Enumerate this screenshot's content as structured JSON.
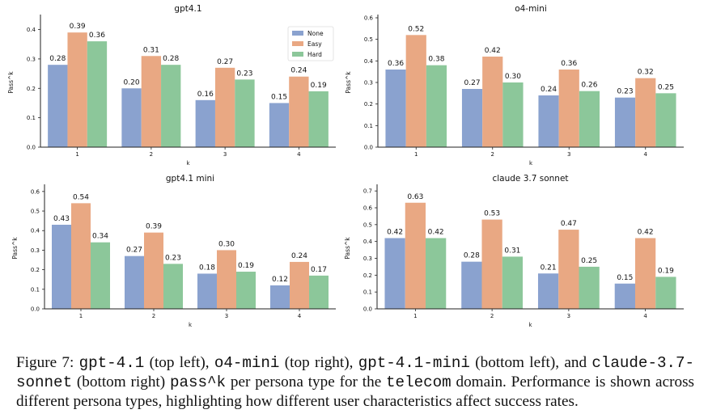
{
  "chart_data": [
    {
      "type": "bar",
      "title": "gpt4.1",
      "xlabel": "k",
      "ylabel": "Pass^k",
      "categories": [
        "1",
        "2",
        "3",
        "4"
      ],
      "ylim": [
        0,
        0.44
      ],
      "yticks": [
        "0.0",
        "0.1",
        "0.2",
        "0.3",
        "0.4"
      ],
      "series": [
        {
          "name": "None",
          "values": [
            0.28,
            0.2,
            0.16,
            0.15
          ],
          "labels": [
            "0.28",
            "0.20",
            "0.16",
            "0.15"
          ]
        },
        {
          "name": "Easy",
          "values": [
            0.39,
            0.31,
            0.27,
            0.24
          ],
          "labels": [
            "0.39",
            "0.31",
            "0.27",
            "0.24"
          ]
        },
        {
          "name": "Hard",
          "values": [
            0.36,
            0.28,
            0.23,
            0.19
          ],
          "labels": [
            "0.36",
            "0.28",
            "0.23",
            "0.19"
          ]
        }
      ],
      "legend": "top-right"
    },
    {
      "type": "bar",
      "title": "o4-mini",
      "xlabel": "k",
      "ylabel": "Pass^k",
      "categories": [
        "1",
        "2",
        "3",
        "4"
      ],
      "ylim": [
        0,
        0.6
      ],
      "yticks": [
        "0.0",
        "0.1",
        "0.2",
        "0.3",
        "0.4",
        "0.5",
        "0.6"
      ],
      "series": [
        {
          "name": "None",
          "values": [
            0.36,
            0.27,
            0.24,
            0.23
          ],
          "labels": [
            "0.36",
            "0.27",
            "0.24",
            "0.23"
          ]
        },
        {
          "name": "Easy",
          "values": [
            0.52,
            0.42,
            0.36,
            0.32
          ],
          "labels": [
            "0.52",
            "0.42",
            "0.36",
            "0.32"
          ]
        },
        {
          "name": "Hard",
          "values": [
            0.38,
            0.3,
            0.26,
            0.25
          ],
          "labels": [
            "0.38",
            "0.30",
            "0.26",
            "0.25"
          ]
        }
      ]
    },
    {
      "type": "bar",
      "title": "gpt4.1 mini",
      "xlabel": "k",
      "ylabel": "Pass^k",
      "categories": [
        "1",
        "2",
        "3",
        "4"
      ],
      "ylim": [
        0,
        0.62
      ],
      "yticks": [
        "0.0",
        "0.1",
        "0.2",
        "0.3",
        "0.4",
        "0.5",
        "0.6"
      ],
      "series": [
        {
          "name": "None",
          "values": [
            0.43,
            0.27,
            0.18,
            0.12
          ],
          "labels": [
            "0.43",
            "0.27",
            "0.18",
            "0.12"
          ]
        },
        {
          "name": "Easy",
          "values": [
            0.54,
            0.39,
            0.3,
            0.24
          ],
          "labels": [
            "0.54",
            "0.39",
            "0.30",
            "0.24"
          ]
        },
        {
          "name": "Hard",
          "values": [
            0.34,
            0.23,
            0.19,
            0.17
          ],
          "labels": [
            "0.34",
            "0.23",
            "0.19",
            "0.17"
          ]
        }
      ]
    },
    {
      "type": "bar",
      "title": "claude 3.7 sonnet",
      "xlabel": "k",
      "ylabel": "Pass^k",
      "categories": [
        "1",
        "2",
        "3",
        "4"
      ],
      "ylim": [
        0,
        0.72
      ],
      "yticks": [
        "0.0",
        "0.1",
        "0.2",
        "0.3",
        "0.4",
        "0.5",
        "0.6",
        "0.7"
      ],
      "series": [
        {
          "name": "None",
          "values": [
            0.42,
            0.28,
            0.21,
            0.15
          ],
          "labels": [
            "0.42",
            "0.28",
            "0.21",
            "0.15"
          ]
        },
        {
          "name": "Easy",
          "values": [
            0.63,
            0.53,
            0.47,
            0.42
          ],
          "labels": [
            "0.63",
            "0.53",
            "0.47",
            "0.42"
          ]
        },
        {
          "name": "Hard",
          "values": [
            0.42,
            0.31,
            0.25,
            0.19
          ],
          "labels": [
            "0.42",
            "0.31",
            "0.25",
            "0.19"
          ]
        }
      ]
    }
  ],
  "colors": {
    "None": "#8aa2cf",
    "Easy": "#e9a883",
    "Hard": "#8cc79a",
    "axis": "#222222",
    "text": "#111111"
  },
  "caption": {
    "label": "Figure 7:",
    "m1": "gpt-4.1",
    "t1": "(top left),",
    "m2": "o4-mini",
    "t2": "(top right),",
    "m3": "gpt-4.1-mini",
    "t3": "(bottom left), and",
    "m4": "claude-3.7-sonnet",
    "t4": "(bottom right)",
    "m5": "pass^k",
    "t5": "per persona type for the",
    "m6": "telecom",
    "t6": "domain. Performance is shown across different persona types, highlighting how different user characteristics affect success rates."
  }
}
